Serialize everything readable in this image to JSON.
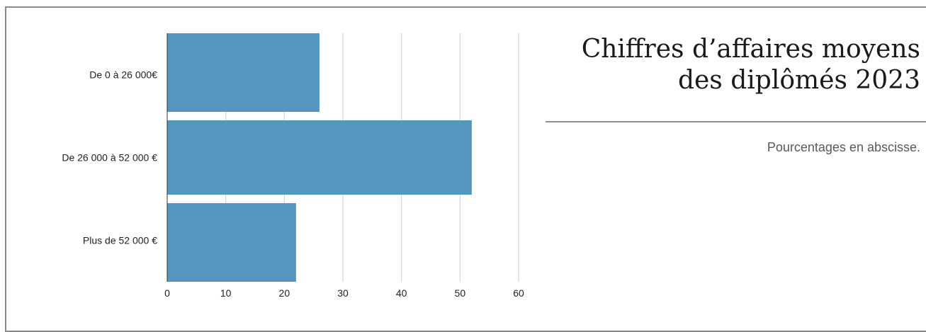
{
  "header": {
    "title_line1": "Chiffres d’affaires moyens",
    "title_line2": "des diplômés 2023",
    "subtitle": "Pourcentages en abscisse."
  },
  "chart_data": {
    "type": "bar",
    "orientation": "horizontal",
    "categories": [
      "De 0 à 26 000€",
      "De 26 000 à 52 000 €",
      "Plus de 52 000 €"
    ],
    "values": [
      26,
      52,
      22
    ],
    "xlim": [
      0,
      60
    ],
    "xticks": [
      0,
      10,
      20,
      30,
      40,
      50,
      60
    ],
    "grid": true,
    "bar_color": "#5596bf",
    "grid_color": "#cccccc"
  }
}
